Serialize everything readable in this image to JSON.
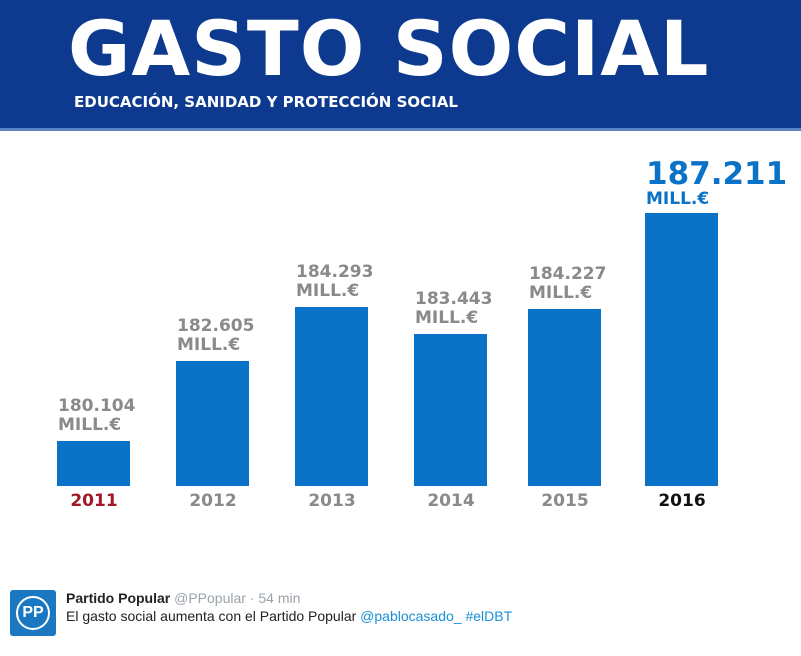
{
  "header": {
    "title": "GASTO SOCIAL",
    "subtitle": "EDUCACIÓN, SANIDAD Y PROTECCIÓN SOCIAL"
  },
  "chart_data": {
    "type": "bar",
    "title": "GASTO SOCIAL",
    "subtitle": "EDUCACIÓN, SANIDAD Y PROTECCIÓN SOCIAL",
    "categories": [
      "2011",
      "2012",
      "2013",
      "2014",
      "2015",
      "2016"
    ],
    "values": [
      180104,
      182605,
      184293,
      183443,
      184227,
      187211
    ],
    "value_labels": [
      "180.104",
      "182.605",
      "184.293",
      "183.443",
      "184.227",
      "187.211"
    ],
    "unit": "MILL.€",
    "ylim": [
      178700,
      187211
    ],
    "grid": false,
    "colors": {
      "bar": "#0a73c8",
      "label": "#8a8a8a",
      "highlight": "#0a73c8",
      "year_2011": "#a0182a",
      "year_2016": "#111111",
      "year_default": "#8a8a8a",
      "header": "#0d3a8e"
    }
  },
  "tweet": {
    "avatar_text": "PP",
    "name": "Partido Popular",
    "handle": "@PPopular",
    "time": "· 54 min",
    "text": "El gasto social aumenta con el Partido Popular ",
    "mention": "@pablocasado_",
    "hashtag": "#elDBT"
  }
}
